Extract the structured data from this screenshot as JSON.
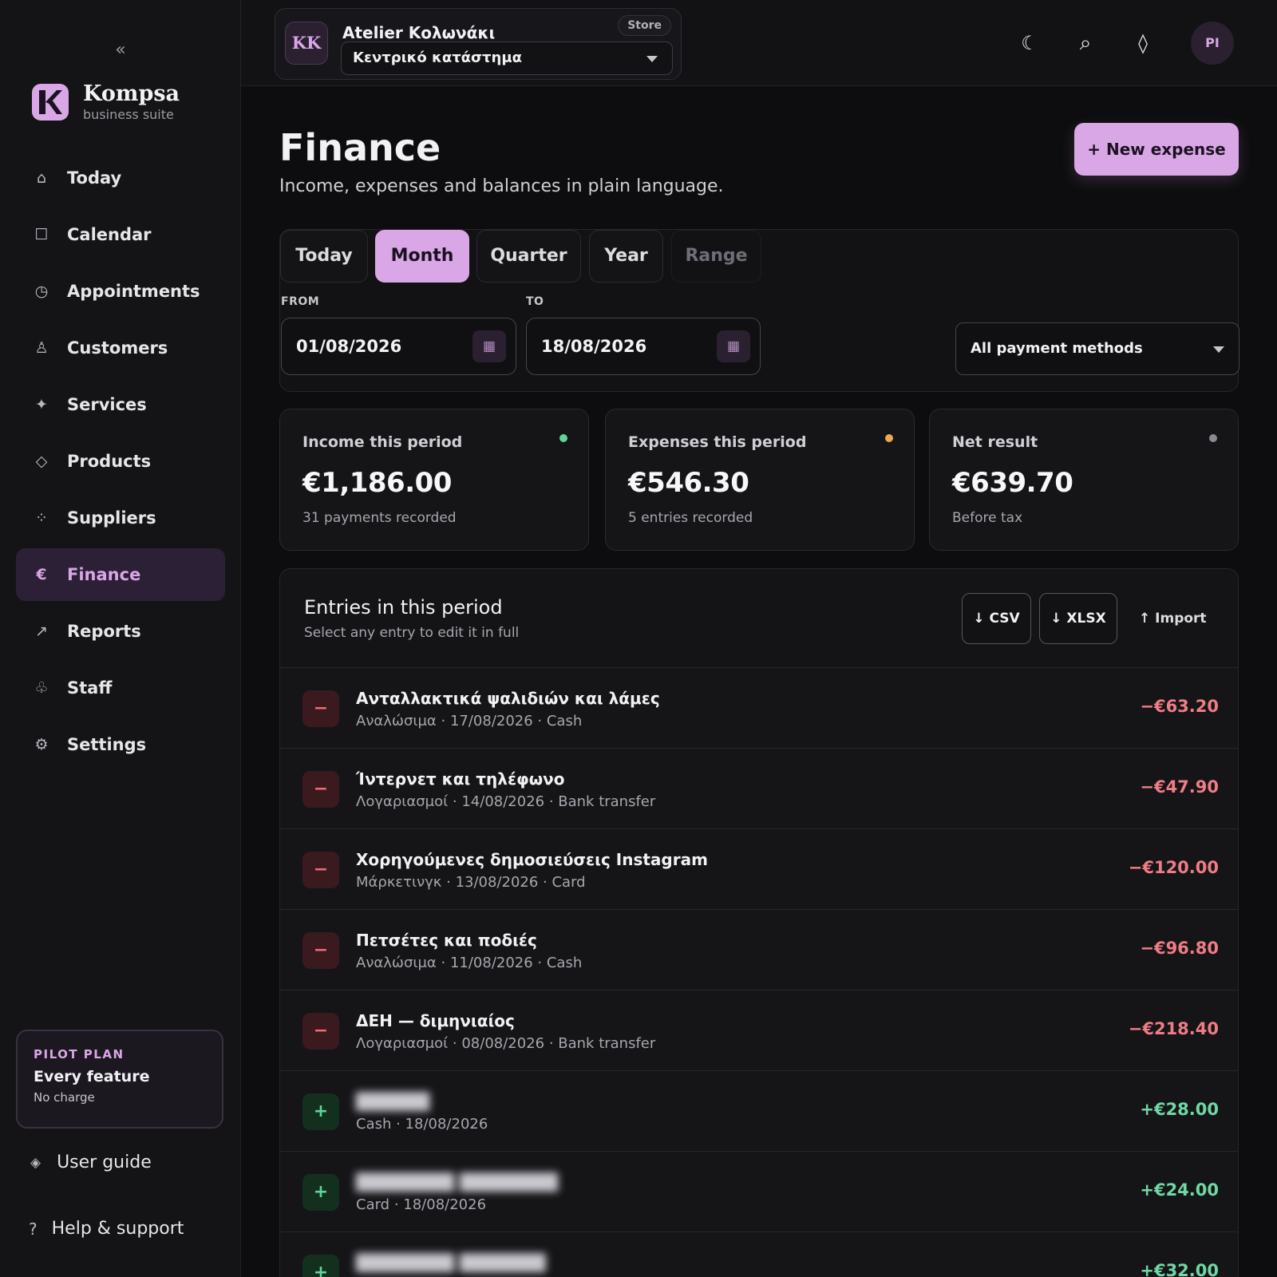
{
  "sidebar": {
    "collapse_icon": "chevron-double-left-icon",
    "brand": {
      "name": "Kompsa",
      "tagline": "business suite"
    },
    "items": [
      {
        "label": "Today",
        "icon": "home-icon",
        "glyph": "⌂"
      },
      {
        "label": "Calendar",
        "icon": "calendar-icon",
        "glyph": "☐"
      },
      {
        "label": "Appointments",
        "icon": "clock-icon",
        "glyph": "◷"
      },
      {
        "label": "Customers",
        "icon": "person-icon",
        "glyph": "♙"
      },
      {
        "label": "Services",
        "icon": "sparkle-icon",
        "glyph": "✦"
      },
      {
        "label": "Products",
        "icon": "diamond-icon",
        "glyph": "◇"
      },
      {
        "label": "Suppliers",
        "icon": "dots-icon",
        "glyph": "⁘"
      },
      {
        "label": "Finance",
        "icon": "euro-icon",
        "glyph": "€",
        "active": true
      },
      {
        "label": "Reports",
        "icon": "arrow-up-right-icon",
        "glyph": "↗"
      },
      {
        "label": "Staff",
        "icon": "staff-icon",
        "glyph": "♧"
      },
      {
        "label": "Settings",
        "icon": "gear-icon",
        "glyph": "⚙"
      }
    ],
    "plan": {
      "eyebrow": "PILOT PLAN",
      "title": "Every feature",
      "subtitle": "No charge"
    },
    "user_guide": "User guide",
    "help": "Help & support"
  },
  "topbar": {
    "store": {
      "initials": "KK",
      "name": "Atelier Κολωνάκι",
      "badge": "Store",
      "selected_location": "Κεντρικό κατάστημα"
    },
    "icons": [
      "moon-icon",
      "search-icon",
      "diamond-icon"
    ],
    "user_initials": "PI"
  },
  "page": {
    "title": "Finance",
    "subtitle": "Income, expenses and balances in plain language.",
    "new_button": "+ New expense"
  },
  "filters": {
    "tabs": [
      {
        "label": "Today"
      },
      {
        "label": "Month",
        "active": true
      },
      {
        "label": "Quarter"
      },
      {
        "label": "Year"
      },
      {
        "label": "Range",
        "disabled": true
      }
    ],
    "from_label": "FROM",
    "from_value": "01/08/2026",
    "to_label": "TO",
    "to_value": "18/08/2026",
    "payment_method": "All payment methods"
  },
  "stats": [
    {
      "label": "Income this period",
      "value": "€1,186.00",
      "sub": "31 payments recorded",
      "dot_color": "#5fd59a"
    },
    {
      "label": "Expenses this period",
      "value": "€546.30",
      "sub": "5 entries recorded",
      "dot_color": "#f0a64a"
    },
    {
      "label": "Net result",
      "value": "€639.70",
      "sub": "Before tax",
      "dot_color": "#8a8a92"
    }
  ],
  "entries": {
    "title": "Entries in this period",
    "subtitle": "Select any entry to edit it in full",
    "csv_button": "↓ CSV",
    "xlsx_button": "↓ XLSX",
    "import_button": "↑ Import",
    "rows": [
      {
        "type": "expense",
        "sign": "−",
        "title": "Ανταλλακτικά ψαλιδιών και λάμες",
        "meta": "Αναλώσιμα · 17/08/2026 · Cash",
        "amount": "−€63.20"
      },
      {
        "type": "expense",
        "sign": "−",
        "title": "Ίντερνετ και τηλέφωνο",
        "meta": "Λογαριασμοί · 14/08/2026 · Bank transfer",
        "amount": "−€47.90"
      },
      {
        "type": "expense",
        "sign": "−",
        "title": "Χορηγούμενες δημοσιεύσεις Instagram",
        "meta": "Μάρκετινγκ · 13/08/2026 · Card",
        "amount": "−€120.00"
      },
      {
        "type": "expense",
        "sign": "−",
        "title": "Πετσέτες και ποδιές",
        "meta": "Αναλώσιμα · 11/08/2026 · Cash",
        "amount": "−€96.80"
      },
      {
        "type": "expense",
        "sign": "−",
        "title": "ΔΕΗ — διμηνιαίος",
        "meta": "Λογαριασμοί · 08/08/2026 · Bank transfer",
        "amount": "−€218.40"
      },
      {
        "type": "income",
        "sign": "+",
        "title": "",
        "meta": "Cash · 18/08/2026",
        "amount": "+€28.00"
      },
      {
        "type": "income",
        "sign": "+",
        "title": "",
        "meta": "Card · 18/08/2026",
        "amount": "+€24.00"
      },
      {
        "type": "income",
        "sign": "+",
        "title": "",
        "meta": "",
        "amount": "+€32.00"
      }
    ]
  }
}
